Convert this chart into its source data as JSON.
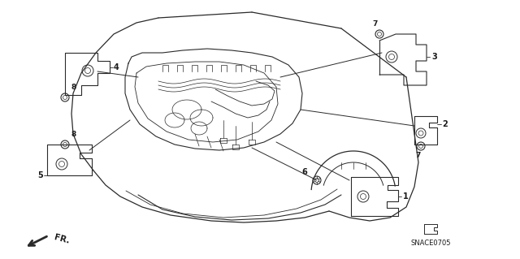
{
  "bg_color": "#ffffff",
  "line_color": "#2a2a2a",
  "text_color": "#1a1a1a",
  "diagram_code": "SNACE0705",
  "fig_width": 6.4,
  "fig_height": 3.19,
  "dpi": 100,
  "xlim": [
    0,
    640
  ],
  "ylim": [
    0,
    319
  ]
}
